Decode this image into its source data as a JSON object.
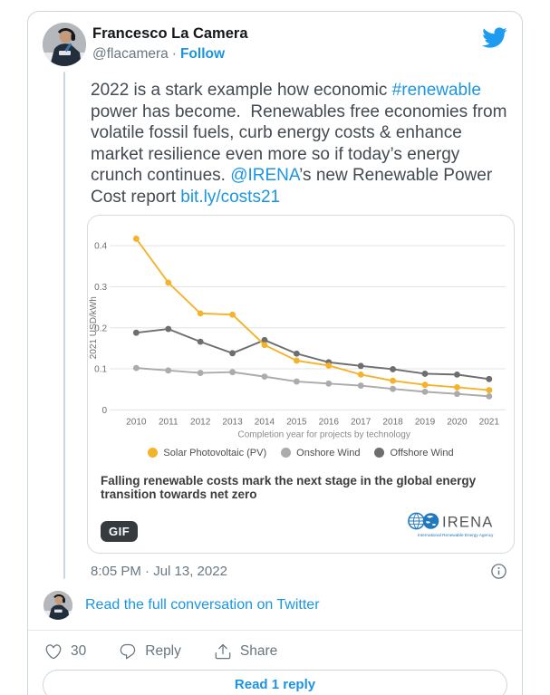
{
  "header": {
    "name": "Francesco La Camera",
    "handle": "@flacamera",
    "separator": "·",
    "follow_label": "Follow"
  },
  "tweet": {
    "segments": [
      {
        "text": "2022 is a stark example how economic "
      },
      {
        "text": "#renewable"
      },
      {
        "text": " power has become.  Renewables free economies from volatile fossil fuels, curb energy costs & enhance market resilience even more so if today’s energy crunch continues. "
      },
      {
        "text": "@IRENA"
      },
      {
        "text": "’s new Renewable Power Cost report "
      },
      {
        "text": "bit.ly/costs21"
      }
    ]
  },
  "chart_data": {
    "type": "line",
    "x": [
      2010,
      2011,
      2012,
      2013,
      2014,
      2015,
      2016,
      2017,
      2018,
      2019,
      2020,
      2021
    ],
    "series": [
      {
        "name": "Solar Photovoltaic (PV)",
        "color": "#F5B32B",
        "values": [
          0.417,
          0.31,
          0.235,
          0.232,
          0.158,
          0.12,
          0.108,
          0.086,
          0.071,
          0.061,
          0.055,
          0.048
        ]
      },
      {
        "name": "Onshore Wind",
        "color": "#ABABAB",
        "values": [
          0.102,
          0.096,
          0.09,
          0.092,
          0.081,
          0.069,
          0.064,
          0.059,
          0.051,
          0.044,
          0.039,
          0.033
        ]
      },
      {
        "name": "Offshore Wind",
        "color": "#6E6E6E",
        "values": [
          0.188,
          0.197,
          0.166,
          0.138,
          0.17,
          0.137,
          0.116,
          0.107,
          0.099,
          0.088,
          0.086,
          0.075
        ]
      }
    ],
    "xlabel": "Completion year for projects by technology",
    "ylabel": "2021 USD/kWh",
    "ylim": [
      0,
      0.45
    ],
    "yticks": [
      0,
      0.1,
      0.2,
      0.3,
      0.4
    ],
    "grid": true,
    "legend_position": "bottom"
  },
  "media": {
    "caption": "Falling renewable costs mark the next stage in the global energy transition towards net zero",
    "badge": "GIF",
    "logo_text": "IRENA",
    "logo_subtext": "International Renewable Energy Agency"
  },
  "footer": {
    "timestamp": "8:05 PM · Jul 13, 2022",
    "conversation_link": "Read the full conversation on Twitter",
    "like_count": "30",
    "reply_label": "Reply",
    "share_label": "Share",
    "read_reply_label": "Read 1 reply"
  },
  "colors": {
    "link_blue": "#1b95e0",
    "brand_blue": "#1d9bf0",
    "solar_yellow": "#F5B32B",
    "onshore_gray": "#ABABAB",
    "offshore_gray": "#6E6E6E"
  }
}
